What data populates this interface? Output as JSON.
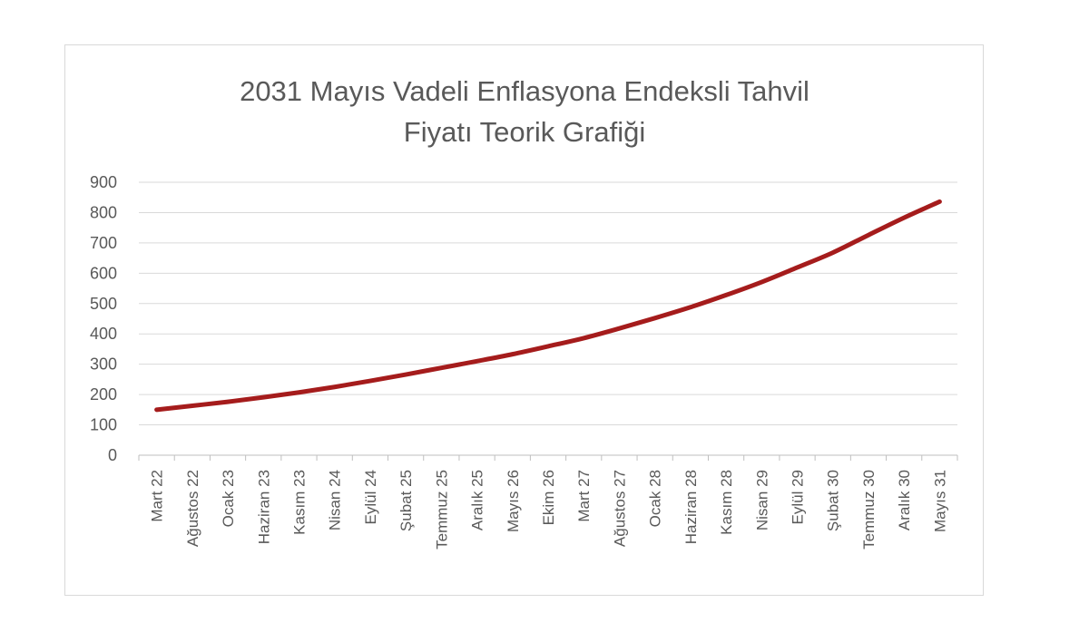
{
  "chart_data": {
    "type": "line",
    "title": [
      "2031 Mayıs Vadeli Enflasyona Endeksli Tahvil",
      "Fiyatı Teorik Grafiği"
    ],
    "xlabel": "",
    "ylabel": "",
    "ylim": [
      0,
      900
    ],
    "y_ticks": [
      "0",
      "100",
      "200",
      "300",
      "400",
      "500",
      "600",
      "700",
      "800",
      "900"
    ],
    "grid": true,
    "categories": [
      "Mart 22",
      "Ağustos 22",
      "Ocak 23",
      "Haziran 23",
      "Kasım 23",
      "Nisan 24",
      "Eylül 24",
      "Şubat 25",
      "Temmuz 25",
      "Aralık 25",
      "Mayıs 26",
      "Ekim 26",
      "Mart 27",
      "Ağustos 27",
      "Ocak 28",
      "Haziran 28",
      "Kasım 28",
      "Nisan 29",
      "Eylül 29",
      "Şubat 30",
      "Temmuz 30",
      "Aralık 30",
      "Mayıs 31"
    ],
    "series": [
      {
        "color": "#a51c1c",
        "values": [
          150,
          163,
          176,
          191,
          207,
          225,
          245,
          266,
          288,
          310,
          333,
          359,
          386,
          418,
          452,
          488,
          528,
          571,
          619,
          668,
          726,
          783,
          836
        ]
      }
    ],
    "colors": {
      "grid": "#d9d9d9",
      "axis": "#bfbfbf",
      "text": "#595959",
      "line": "#a51c1c"
    }
  }
}
